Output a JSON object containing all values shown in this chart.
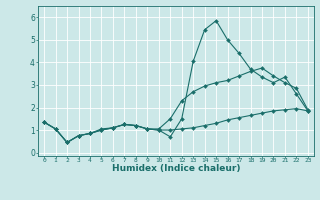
{
  "xlabel": "Humidex (Indice chaleur)",
  "ylabel": "",
  "bg_color": "#cce8e8",
  "grid_color": "#b8d8d8",
  "line_color": "#1a6e6a",
  "xlim": [
    -0.5,
    23.5
  ],
  "ylim": [
    -0.15,
    6.5
  ],
  "xticks": [
    0,
    1,
    2,
    3,
    4,
    5,
    6,
    7,
    8,
    9,
    10,
    11,
    12,
    13,
    14,
    15,
    16,
    17,
    18,
    19,
    20,
    21,
    22,
    23
  ],
  "yticks": [
    0,
    1,
    2,
    3,
    4,
    5,
    6
  ],
  "line1_x": [
    0,
    1,
    2,
    3,
    4,
    5,
    6,
    7,
    8,
    9,
    10,
    11,
    12,
    13,
    14,
    15,
    16,
    17,
    18,
    19,
    20,
    21,
    22,
    23
  ],
  "line1_y": [
    1.35,
    1.05,
    0.45,
    0.75,
    0.85,
    1.0,
    1.1,
    1.25,
    1.2,
    1.05,
    1.0,
    0.7,
    1.5,
    4.05,
    5.45,
    5.85,
    5.0,
    4.4,
    3.7,
    3.35,
    3.1,
    3.35,
    2.6,
    1.85
  ],
  "line2_x": [
    0,
    1,
    2,
    3,
    4,
    5,
    6,
    7,
    8,
    9,
    10,
    11,
    12,
    13,
    14,
    15,
    16,
    17,
    18,
    19,
    20,
    21,
    22,
    23
  ],
  "line2_y": [
    1.35,
    1.05,
    0.45,
    0.75,
    0.85,
    1.05,
    1.1,
    1.25,
    1.2,
    1.05,
    1.05,
    1.5,
    2.3,
    2.7,
    2.95,
    3.1,
    3.2,
    3.4,
    3.6,
    3.75,
    3.4,
    3.1,
    2.85,
    1.9
  ],
  "line3_x": [
    0,
    1,
    2,
    3,
    4,
    5,
    6,
    7,
    8,
    9,
    10,
    11,
    12,
    13,
    14,
    15,
    16,
    17,
    18,
    19,
    20,
    21,
    22,
    23
  ],
  "line3_y": [
    1.35,
    1.05,
    0.45,
    0.75,
    0.85,
    1.0,
    1.1,
    1.25,
    1.2,
    1.05,
    1.0,
    1.0,
    1.05,
    1.1,
    1.2,
    1.3,
    1.45,
    1.55,
    1.65,
    1.75,
    1.85,
    1.9,
    1.95,
    1.85
  ]
}
